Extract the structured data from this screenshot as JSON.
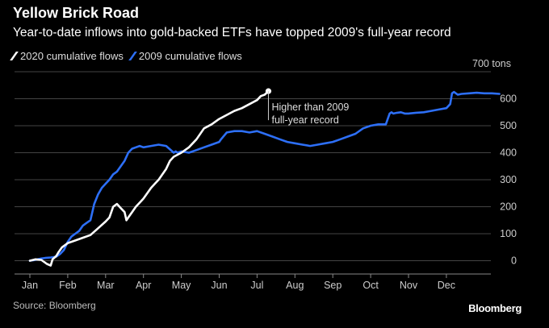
{
  "header": {
    "title": "Yellow Brick Road",
    "subtitle": "Year-to-date inflows into gold-backed ETFs have topped 2009's full-year record"
  },
  "footer": {
    "source": "Source: Bloomberg",
    "brand": "Bloomberg"
  },
  "colors": {
    "background": "#000000",
    "series_2020": "#ffffff",
    "series_2009": "#2d6ff7",
    "grid": "#444444"
  },
  "chart_data": {
    "type": "line",
    "title": "Yellow Brick Road",
    "subtitle": "Year-to-date inflows into gold-backed ETFs have topped 2009's full-year record",
    "xlabel": "",
    "ylabel": "",
    "y_unit_label": "700 tons",
    "ylim": [
      -30,
      700
    ],
    "yticks": [
      0,
      100,
      200,
      300,
      400,
      500,
      600
    ],
    "ytick_labels": [
      "0",
      "100",
      "200",
      "300",
      "400",
      "500",
      "600"
    ],
    "xlim": [
      0,
      12.4
    ],
    "x_categories": [
      "Jan",
      "Feb",
      "Mar",
      "Apr",
      "May",
      "Jun",
      "Jul",
      "Aug",
      "Sep",
      "Oct",
      "Nov",
      "Dec"
    ],
    "grid": true,
    "legend_position": "top-left",
    "legend": [
      "2020 cumulative flows",
      "2009 cumulative flows"
    ],
    "annotation": {
      "lines": [
        "Higher than 2009",
        "full-year record"
      ],
      "x": 6.3,
      "y": 628
    },
    "series": [
      {
        "name": "2020 cumulative flows",
        "color": "#ffffff",
        "x": [
          0,
          0.15,
          0.3,
          0.45,
          0.55,
          0.6,
          0.7,
          0.75,
          0.85,
          1.0,
          1.2,
          1.4,
          1.6,
          1.8,
          2.0,
          2.1,
          2.2,
          2.3,
          2.4,
          2.5,
          2.55,
          2.6,
          2.7,
          2.8,
          2.9,
          3.0,
          3.1,
          3.2,
          3.3,
          3.4,
          3.5,
          3.6,
          3.7,
          3.8,
          4.0,
          4.2,
          4.4,
          4.6,
          4.8,
          5.0,
          5.2,
          5.4,
          5.6,
          5.8,
          6.0,
          6.1,
          6.2,
          6.3
        ],
        "y": [
          0,
          5,
          3,
          -12,
          -18,
          5,
          18,
          30,
          50,
          65,
          75,
          85,
          95,
          120,
          145,
          160,
          200,
          210,
          195,
          180,
          150,
          160,
          180,
          200,
          215,
          230,
          250,
          270,
          285,
          300,
          320,
          340,
          370,
          385,
          400,
          420,
          450,
          490,
          505,
          525,
          540,
          555,
          565,
          580,
          595,
          610,
          615,
          628
        ]
      },
      {
        "name": "2009 cumulative flows",
        "color": "#2d6ff7",
        "x": [
          0,
          0.1,
          0.2,
          0.3,
          0.4,
          0.55,
          0.7,
          0.8,
          0.9,
          1.0,
          1.1,
          1.2,
          1.3,
          1.4,
          1.5,
          1.6,
          1.7,
          1.8,
          1.9,
          2.0,
          2.1,
          2.2,
          2.3,
          2.4,
          2.5,
          2.6,
          2.7,
          2.8,
          2.9,
          3.0,
          3.2,
          3.4,
          3.6,
          3.8,
          3.85,
          3.9,
          4.0,
          4.2,
          4.4,
          4.6,
          4.8,
          5.0,
          5.05,
          5.2,
          5.4,
          5.6,
          5.8,
          6.0,
          6.2,
          6.4,
          6.6,
          6.8,
          7.0,
          7.2,
          7.4,
          7.6,
          7.8,
          8.0,
          8.2,
          8.4,
          8.6,
          8.8,
          9.0,
          9.2,
          9.4,
          9.5,
          9.55,
          9.6,
          9.7,
          9.8,
          9.9,
          10.0,
          10.2,
          10.4,
          10.6,
          10.8,
          11.0,
          11.1,
          11.15,
          11.2,
          11.3,
          11.4,
          11.6,
          11.8,
          12.0,
          12.2,
          12.4
        ],
        "y": [
          0,
          2,
          5,
          8,
          10,
          12,
          15,
          25,
          40,
          70,
          90,
          100,
          110,
          130,
          140,
          150,
          210,
          245,
          270,
          285,
          300,
          320,
          330,
          350,
          370,
          400,
          415,
          420,
          425,
          420,
          425,
          430,
          425,
          400,
          405,
          400,
          405,
          400,
          410,
          420,
          430,
          440,
          450,
          475,
          480,
          480,
          475,
          480,
          470,
          460,
          450,
          440,
          435,
          430,
          425,
          430,
          435,
          440,
          450,
          460,
          470,
          490,
          500,
          505,
          505,
          545,
          550,
          545,
          548,
          550,
          545,
          545,
          548,
          550,
          555,
          560,
          565,
          580,
          620,
          625,
          615,
          618,
          620,
          622,
          620,
          620,
          618
        ]
      }
    ]
  }
}
